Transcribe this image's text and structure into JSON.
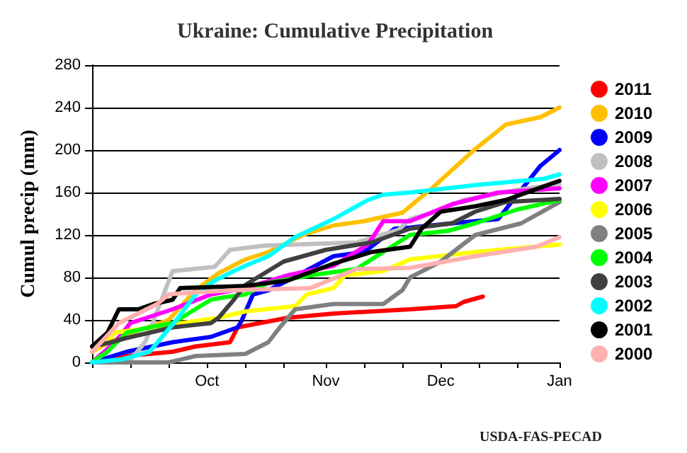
{
  "chart_data": {
    "type": "line",
    "title": "Ukraine: Cumulative Precipitation",
    "ylabel": "Cumul precip (mm)",
    "annotations": [
      "USDA-FAS-PECAD"
    ],
    "xlim": [
      "2000-09-01",
      "2001-01-01"
    ],
    "xticks": [
      {
        "value": "2000-09-01",
        "label": null
      },
      {
        "value": "2000-09-11",
        "label": null
      },
      {
        "value": "2000-09-21",
        "label": null
      },
      {
        "value": "2000-10-01",
        "label": "Oct"
      },
      {
        "value": "2000-10-11",
        "label": null
      },
      {
        "value": "2000-10-21",
        "label": null
      },
      {
        "value": "2000-11-01",
        "label": "Nov"
      },
      {
        "value": "2000-11-11",
        "label": null
      },
      {
        "value": "2000-11-21",
        "label": null
      },
      {
        "value": "2000-12-01",
        "label": "Dec"
      },
      {
        "value": "2000-12-11",
        "label": null
      },
      {
        "value": "2000-12-21",
        "label": null
      },
      {
        "value": "2001-01-01",
        "label": "Jan"
      }
    ],
    "ylim": [
      0,
      280
    ],
    "yticks": [
      0,
      40,
      80,
      120,
      160,
      200,
      240,
      280
    ],
    "grid": "y",
    "legend": "right",
    "marker": "none",
    "line_style": "solid",
    "series": [
      {
        "name": "2011",
        "color": "#ff0000",
        "x": [
          "2000-09-01",
          "2000-09-10",
          "2000-09-22",
          "2000-09-28",
          "2000-10-07",
          "2000-10-09",
          "2000-10-22",
          "2000-11-03",
          "2000-11-23",
          "2000-12-05",
          "2000-12-07",
          "2000-12-12"
        ],
        "values": [
          0,
          6,
          10,
          15,
          19,
          33,
          42,
          46,
          50,
          53,
          57,
          62
        ]
      },
      {
        "name": "2010",
        "color": "#ffc000",
        "x": [
          "2000-09-01",
          "2000-09-06",
          "2000-09-13",
          "2000-09-21",
          "2000-09-28",
          "2000-10-04",
          "2000-10-11",
          "2000-10-17",
          "2000-10-26",
          "2000-11-03",
          "2000-11-11",
          "2000-11-21",
          "2000-11-29",
          "2000-12-10",
          "2000-12-18",
          "2000-12-27",
          "2001-01-01"
        ],
        "values": [
          10,
          20,
          30,
          40,
          68,
          84,
          97,
          104,
          120,
          129,
          133,
          141,
          165,
          201,
          224,
          231,
          240
        ]
      },
      {
        "name": "2009",
        "color": "#0000ff",
        "x": [
          "2000-09-01",
          "2000-09-10",
          "2000-09-22",
          "2000-10-02",
          "2000-10-09",
          "2000-10-10",
          "2000-10-13",
          "2000-10-17",
          "2000-10-22",
          "2000-11-03",
          "2000-11-11",
          "2000-11-19",
          "2000-11-23",
          "2000-12-04",
          "2000-12-16",
          "2000-12-21",
          "2000-12-27",
          "2001-01-01"
        ],
        "values": [
          0,
          10,
          19,
          24,
          33,
          39,
          64,
          68,
          77,
          100,
          104,
          126,
          127,
          131,
          135,
          158,
          185,
          200
        ]
      },
      {
        "name": "2008",
        "color": "#c0c0c0",
        "x": [
          "2000-09-01",
          "2000-09-11",
          "2000-09-15",
          "2000-09-22",
          "2000-10-03",
          "2000-10-07",
          "2000-10-16",
          "2000-11-09",
          "2000-11-20",
          "2000-11-23",
          "2000-11-30",
          "2000-12-07",
          "2000-12-22",
          "2001-01-01"
        ],
        "values": [
          0,
          2,
          20,
          86,
          90,
          106,
          110,
          113,
          125,
          135,
          142,
          153,
          163,
          168
        ]
      },
      {
        "name": "2007",
        "color": "#ff00ff",
        "x": [
          "2000-09-01",
          "2000-09-07",
          "2000-09-11",
          "2000-09-22",
          "2000-10-02",
          "2000-10-11",
          "2000-10-22",
          "2000-11-03",
          "2000-11-12",
          "2000-11-16",
          "2000-11-23",
          "2000-12-04",
          "2000-12-16",
          "2001-01-01"
        ],
        "values": [
          0,
          19,
          37,
          50,
          64,
          70,
          82,
          91,
          111,
          133,
          133,
          149,
          160,
          164
        ]
      },
      {
        "name": "2006",
        "color": "#ffff00",
        "x": [
          "2000-09-01",
          "2000-09-07",
          "2000-09-17",
          "2000-09-28",
          "2000-10-04",
          "2000-10-11",
          "2000-10-24",
          "2000-10-27",
          "2000-11-03",
          "2000-11-06",
          "2000-11-16",
          "2000-11-23",
          "2000-12-10",
          "2001-01-01"
        ],
        "values": [
          10,
          28,
          33,
          39,
          42,
          48,
          53,
          64,
          70,
          82,
          86,
          97,
          104,
          111
        ]
      },
      {
        "name": "2005",
        "color": "#808080",
        "x": [
          "2000-09-01",
          "2000-09-21",
          "2000-09-28",
          "2000-10-11",
          "2000-10-17",
          "2000-10-20",
          "2000-10-24",
          "2000-11-03",
          "2000-11-16",
          "2000-11-21",
          "2000-11-23",
          "2000-12-01",
          "2000-12-10",
          "2000-12-22",
          "2001-01-01"
        ],
        "values": [
          0,
          0,
          6,
          8,
          19,
          33,
          50,
          55,
          55,
          68,
          80,
          95,
          120,
          131,
          151
        ]
      },
      {
        "name": "2004",
        "color": "#00ff00",
        "x": [
          "2000-09-01",
          "2000-09-05",
          "2000-09-10",
          "2000-09-16",
          "2000-09-22",
          "2000-09-27",
          "2000-10-02",
          "2000-10-05",
          "2000-10-11",
          "2000-10-17",
          "2000-10-28",
          "2000-11-09",
          "2000-11-23",
          "2000-12-03",
          "2000-12-10",
          "2000-12-21",
          "2001-01-01"
        ],
        "values": [
          0,
          10,
          28,
          33,
          37,
          48,
          59,
          61,
          64,
          75,
          82,
          88,
          120,
          124,
          131,
          144,
          153
        ]
      },
      {
        "name": "2003",
        "color": "#404040",
        "x": [
          "2000-09-01",
          "2000-09-06",
          "2000-09-10",
          "2000-09-22",
          "2000-10-02",
          "2000-10-04",
          "2000-10-08",
          "2000-10-11",
          "2000-10-21",
          "2000-11-01",
          "2000-11-13",
          "2000-11-23",
          "2000-12-04",
          "2000-12-10",
          "2000-12-18",
          "2001-01-01"
        ],
        "values": [
          15,
          19,
          23,
          33,
          37,
          42,
          59,
          73,
          95,
          106,
          113,
          126,
          131,
          142,
          151,
          154
        ]
      },
      {
        "name": "2002",
        "color": "#00ffff",
        "x": [
          "2000-09-01",
          "2000-09-09",
          "2000-09-16",
          "2000-09-23",
          "2000-09-28",
          "2000-10-03",
          "2000-10-08",
          "2000-10-11",
          "2000-10-17",
          "2000-10-24",
          "2000-11-03",
          "2000-11-12",
          "2000-11-16",
          "2000-11-23",
          "2000-12-10",
          "2000-12-28",
          "2001-01-01"
        ],
        "values": [
          0,
          3,
          10,
          40,
          64,
          77,
          86,
          91,
          100,
          118,
          135,
          153,
          158,
          160,
          167,
          173,
          177
        ]
      },
      {
        "name": "2001",
        "color": "#000000",
        "x": [
          "2000-09-01",
          "2000-09-05",
          "2000-09-08",
          "2000-09-13",
          "2000-09-17",
          "2000-09-22",
          "2000-09-24",
          "2000-10-11",
          "2000-10-22",
          "2000-11-03",
          "2000-11-13",
          "2000-11-23",
          "2000-11-26",
          "2000-12-01",
          "2000-12-10",
          "2000-12-18",
          "2001-01-01"
        ],
        "values": [
          15,
          28,
          50,
          50,
          55,
          59,
          70,
          72,
          77,
          93,
          104,
          109,
          126,
          142,
          147,
          153,
          171
        ]
      },
      {
        "name": "2000",
        "color": "#ffb0b0",
        "x": [
          "2000-09-01",
          "2000-09-08",
          "2000-09-13",
          "2000-09-18",
          "2000-09-21",
          "2000-09-24",
          "2000-10-08",
          "2000-10-28",
          "2000-11-09",
          "2000-11-23",
          "2000-12-10",
          "2000-12-26",
          "2001-01-01"
        ],
        "values": [
          10,
          37,
          46,
          55,
          64,
          65,
          68,
          70,
          88,
          89,
          100,
          109,
          118
        ]
      }
    ]
  }
}
